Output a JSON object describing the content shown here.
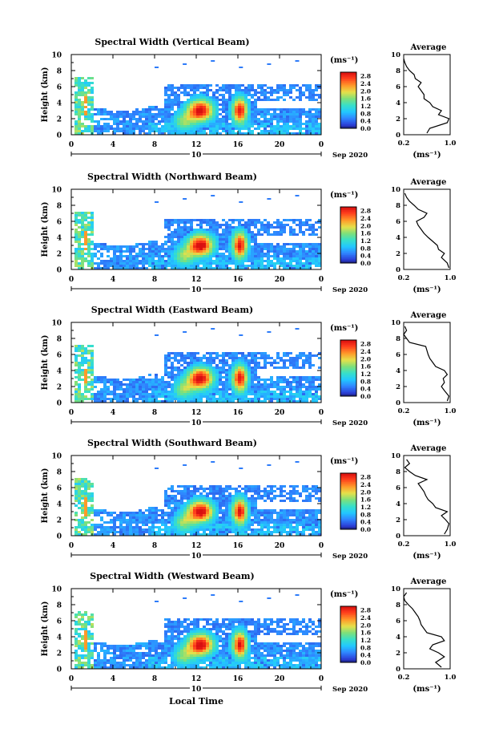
{
  "figure": {
    "x_axis_title": "Local Time",
    "date_label": "Sep 2020"
  },
  "chart_data": [
    {
      "type": "heatmap",
      "title": "Spectral Width (Vertical Beam)",
      "ylabel": "Height (km)",
      "xlabel": "Local Time",
      "xlim": [
        0,
        24
      ],
      "ylim": [
        0,
        10
      ],
      "x_ticks": [
        "0",
        "4",
        "8",
        "12",
        "16",
        "20",
        "0"
      ],
      "y_ticks": [
        "0",
        "2",
        "4",
        "6",
        "8",
        "10"
      ],
      "day_label": "10",
      "date_label": "Sep 2020",
      "colorbar": {
        "unit": "(ms⁻¹)",
        "ticks": [
          "0.0",
          "0.4",
          "0.8",
          "1.2",
          "1.6",
          "2.0",
          "2.4",
          "2.8"
        ],
        "range": [
          0,
          3.0
        ]
      },
      "average_profile": {
        "title": "Average",
        "xlabel": "(ms⁻¹)",
        "xlim": [
          0.2,
          1.0
        ],
        "x_ticks": [
          "0.2",
          "1.0"
        ],
        "ylim": [
          0,
          10
        ],
        "y_ticks": [
          "0",
          "2",
          "4",
          "6",
          "8",
          "10"
        ],
        "height_km": [
          0.2,
          0.8,
          1.5,
          2.0,
          2.5,
          3.0,
          3.5,
          4.0,
          4.5,
          5.0,
          5.5,
          6.0,
          6.5,
          7.0,
          7.5,
          8.0,
          8.5,
          9.0,
          9.5
        ],
        "width_ms": [
          0.6,
          0.65,
          0.95,
          0.98,
          0.8,
          0.85,
          0.7,
          0.65,
          0.55,
          0.55,
          0.5,
          0.45,
          0.5,
          0.4,
          0.38,
          0.3,
          0.25,
          0.22,
          0.2
        ]
      }
    },
    {
      "type": "heatmap",
      "title": "Spectral Width (Northward Beam)",
      "ylabel": "Height (km)",
      "xlabel": "Local Time",
      "xlim": [
        0,
        24
      ],
      "ylim": [
        0,
        10
      ],
      "x_ticks": [
        "0",
        "4",
        "8",
        "12",
        "16",
        "20",
        "0"
      ],
      "y_ticks": [
        "0",
        "2",
        "4",
        "6",
        "8",
        "10"
      ],
      "day_label": "10",
      "date_label": "Sep 2020",
      "colorbar": {
        "unit": "(ms⁻¹)",
        "ticks": [
          "0.0",
          "0.4",
          "0.8",
          "1.2",
          "1.6",
          "2.0",
          "2.4",
          "2.8"
        ],
        "range": [
          0,
          3.0
        ]
      },
      "average_profile": {
        "title": "Average",
        "xlabel": "(ms⁻¹)",
        "xlim": [
          0.2,
          1.0
        ],
        "x_ticks": [
          "0.2",
          "1.0"
        ],
        "ylim": [
          0,
          10
        ],
        "y_ticks": [
          "0",
          "2",
          "4",
          "6",
          "8",
          "10"
        ],
        "height_km": [
          0.2,
          0.8,
          1.5,
          2.0,
          2.5,
          3.0,
          3.5,
          4.0,
          4.5,
          5.0,
          5.5,
          6.0,
          6.5,
          7.0,
          7.5,
          8.0,
          8.5,
          9.0,
          9.5
        ],
        "width_ms": [
          0.98,
          0.95,
          0.85,
          0.9,
          0.8,
          0.78,
          0.7,
          0.62,
          0.55,
          0.5,
          0.45,
          0.42,
          0.55,
          0.6,
          0.45,
          0.38,
          0.3,
          0.25,
          0.22
        ]
      }
    },
    {
      "type": "heatmap",
      "title": "Spectral Width (Eastward Beam)",
      "ylabel": "Height (km)",
      "xlabel": "Local Time",
      "xlim": [
        0,
        24
      ],
      "ylim": [
        0,
        10
      ],
      "x_ticks": [
        "0",
        "4",
        "8",
        "12",
        "16",
        "20",
        "0"
      ],
      "y_ticks": [
        "0",
        "2",
        "4",
        "6",
        "8",
        "10"
      ],
      "day_label": "10",
      "date_label": "Sep 2020",
      "colorbar": {
        "unit": "(ms⁻¹)",
        "ticks": [
          "0.0",
          "0.4",
          "0.8",
          "1.2",
          "1.6",
          "2.0",
          "2.4",
          "2.8"
        ],
        "range": [
          0,
          3.0
        ]
      },
      "average_profile": {
        "title": "Average",
        "xlabel": "(ms⁻¹)",
        "xlim": [
          0.2,
          1.0
        ],
        "x_ticks": [
          "0.2",
          "1.0"
        ],
        "ylim": [
          0,
          10
        ],
        "y_ticks": [
          "0",
          "2",
          "4",
          "6",
          "8",
          "10"
        ],
        "height_km": [
          0.2,
          0.8,
          1.5,
          2.0,
          2.5,
          3.0,
          3.5,
          4.0,
          4.5,
          5.0,
          5.5,
          6.0,
          6.5,
          7.0,
          7.5,
          8.0,
          8.5,
          9.0,
          9.5
        ],
        "width_ms": [
          0.95,
          0.98,
          0.9,
          0.85,
          0.9,
          0.88,
          0.95,
          0.9,
          0.75,
          0.7,
          0.65,
          0.62,
          0.6,
          0.58,
          0.3,
          0.25,
          0.2,
          0.25,
          0.22
        ]
      }
    },
    {
      "type": "heatmap",
      "title": "Spectral Width (Southward Beam)",
      "ylabel": "Height (km)",
      "xlabel": "Local Time",
      "xlim": [
        0,
        24
      ],
      "ylim": [
        0,
        10
      ],
      "x_ticks": [
        "0",
        "4",
        "8",
        "12",
        "16",
        "20",
        "0"
      ],
      "y_ticks": [
        "0",
        "2",
        "4",
        "6",
        "8",
        "10"
      ],
      "day_label": "10",
      "date_label": "Sep 2020",
      "colorbar": {
        "unit": "(ms⁻¹)",
        "ticks": [
          "0.0",
          "0.4",
          "0.8",
          "1.2",
          "1.6",
          "2.0",
          "2.4",
          "2.8"
        ],
        "range": [
          0,
          3.0
        ]
      },
      "average_profile": {
        "title": "Average",
        "xlabel": "(ms⁻¹)",
        "xlim": [
          0.2,
          1.0
        ],
        "x_ticks": [
          "0.2",
          "1.0"
        ],
        "ylim": [
          0,
          10
        ],
        "y_ticks": [
          "0",
          "2",
          "4",
          "6",
          "8",
          "10"
        ],
        "height_km": [
          0.2,
          0.8,
          1.5,
          2.0,
          2.5,
          3.0,
          3.5,
          4.0,
          4.5,
          5.0,
          5.5,
          6.0,
          6.5,
          7.0,
          7.5,
          8.0,
          8.5,
          9.0,
          9.5
        ],
        "width_ms": [
          0.9,
          0.95,
          0.98,
          0.92,
          0.85,
          0.95,
          0.75,
          0.7,
          0.62,
          0.58,
          0.55,
          0.5,
          0.45,
          0.6,
          0.4,
          0.3,
          0.22,
          0.3,
          0.25
        ]
      }
    },
    {
      "type": "heatmap",
      "title": "Spectral Width (Westward Beam)",
      "ylabel": "Height (km)",
      "xlabel": "Local Time",
      "xlim": [
        0,
        24
      ],
      "ylim": [
        0,
        10
      ],
      "x_ticks": [
        "0",
        "4",
        "8",
        "12",
        "16",
        "20",
        "0"
      ],
      "y_ticks": [
        "0",
        "2",
        "4",
        "6",
        "8",
        "10"
      ],
      "day_label": "10",
      "date_label": "Sep 2020",
      "colorbar": {
        "unit": "(ms⁻¹)",
        "ticks": [
          "0.0",
          "0.4",
          "0.8",
          "1.2",
          "1.6",
          "2.0",
          "2.4",
          "2.8"
        ],
        "range": [
          0,
          3.0
        ]
      },
      "average_profile": {
        "title": "Average",
        "xlabel": "(ms⁻¹)",
        "xlim": [
          0.2,
          1.0
        ],
        "x_ticks": [
          "0.2",
          "1.0"
        ],
        "ylim": [
          0,
          10
        ],
        "y_ticks": [
          "0",
          "2",
          "4",
          "6",
          "8",
          "10"
        ],
        "height_km": [
          0.2,
          0.8,
          1.5,
          2.0,
          2.5,
          3.0,
          3.5,
          4.0,
          4.5,
          5.0,
          5.5,
          6.0,
          6.5,
          7.0,
          7.5,
          8.0,
          8.5,
          9.0,
          9.5
        ],
        "width_ms": [
          0.85,
          0.75,
          0.9,
          0.8,
          0.65,
          0.7,
          0.9,
          0.85,
          0.6,
          0.55,
          0.5,
          0.48,
          0.45,
          0.4,
          0.35,
          0.28,
          0.22,
          0.2,
          0.25
        ]
      }
    }
  ]
}
